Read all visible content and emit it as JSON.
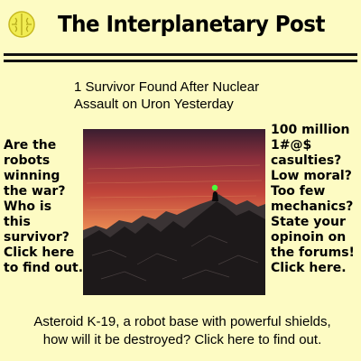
{
  "masthead": {
    "title": "The Interplanetary Post"
  },
  "headline": {
    "line1": "1 Survivor Found After Nuclear",
    "line2": "Assault on Uron Yesterday"
  },
  "left_teaser": {
    "lines": [
      "Are the",
      "robots",
      "winning",
      "the war?",
      "Who is",
      "this",
      "survivor?",
      "Click here",
      "to find out."
    ]
  },
  "right_teaser": {
    "lines": [
      "100 million",
      "1#@$",
      "casulties?",
      "Low moral?",
      "Too few",
      "mechanics?",
      "State your",
      "opinoin on",
      "the forums!",
      "Click here."
    ]
  },
  "bottom_teaser": {
    "line1": "Asteroid K-19, a robot base with powerful shields,",
    "line2": "how will it be destroyed? Click here to find out."
  },
  "colors": {
    "background": "#fdfbc3",
    "sky_top": "#3a1e30",
    "sky_mid": "#c0443a",
    "sky_low": "#f2b36a",
    "survivor_glow": "#4cff3a"
  }
}
